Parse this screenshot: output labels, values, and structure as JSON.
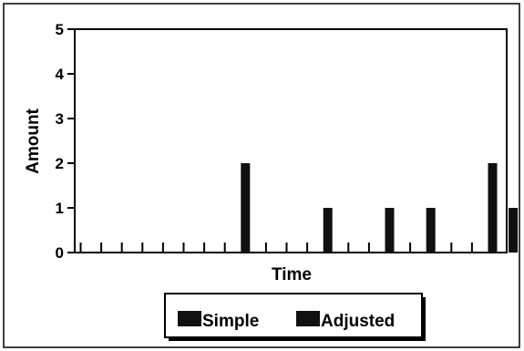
{
  "chart_data": {
    "type": "bar",
    "xlabel": "Time",
    "ylabel": "Amount",
    "ylim": [
      0,
      5
    ],
    "yticks": [
      "0",
      "1",
      "2",
      "3",
      "4",
      "5"
    ],
    "grid": false,
    "legend_placement": "bottom-center",
    "legend": [
      "Simple",
      "Adjusted"
    ],
    "values": [
      0,
      0,
      0,
      0,
      0,
      0,
      0,
      0,
      2,
      0,
      0,
      0,
      1,
      0,
      0,
      1,
      0,
      1,
      0,
      0,
      2,
      1
    ],
    "colors": {
      "bar": "#111111",
      "frame": "#000000"
    }
  }
}
